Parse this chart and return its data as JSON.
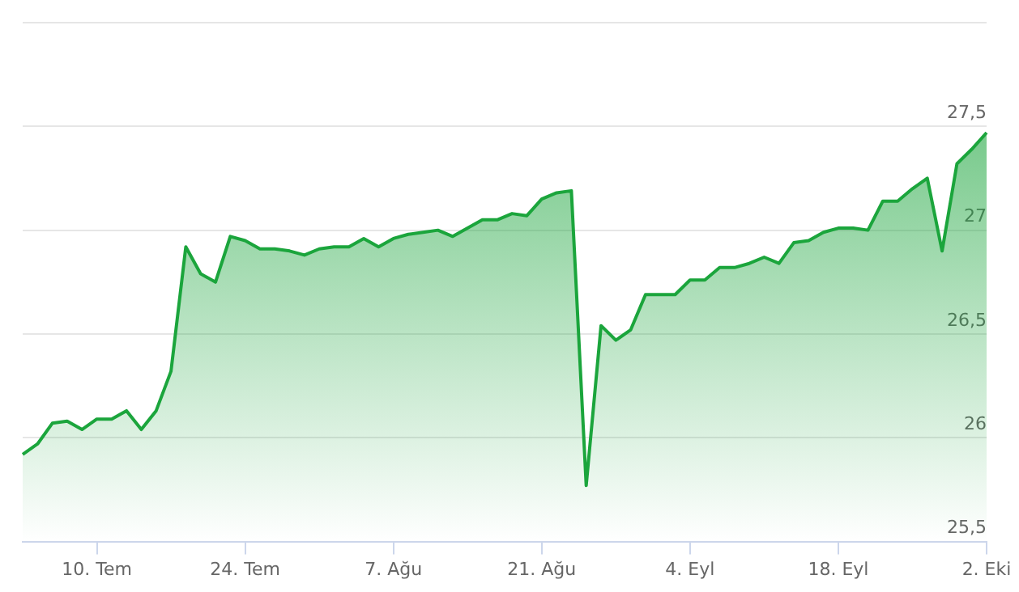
{
  "chart_data": {
    "type": "area",
    "categories": [
      null,
      null,
      null,
      null,
      null,
      "10. Tem",
      null,
      null,
      null,
      null,
      null,
      null,
      null,
      null,
      null,
      "24. Tem",
      null,
      null,
      null,
      null,
      null,
      null,
      null,
      null,
      null,
      "7. Ağu",
      null,
      null,
      null,
      null,
      null,
      null,
      null,
      null,
      null,
      "21. Ağu",
      null,
      null,
      null,
      null,
      null,
      null,
      null,
      null,
      null,
      "4. Eyl",
      null,
      null,
      null,
      null,
      null,
      null,
      null,
      null,
      null,
      "18. Eyl",
      null,
      null,
      null,
      null,
      null,
      null,
      null,
      null,
      null,
      "2. Eki"
    ],
    "values": [
      25.92,
      25.97,
      26.07,
      26.08,
      26.04,
      26.09,
      26.09,
      26.13,
      26.04,
      26.13,
      26.32,
      26.92,
      26.79,
      26.75,
      26.97,
      26.95,
      26.91,
      26.91,
      26.9,
      26.88,
      26.91,
      26.92,
      26.92,
      26.96,
      26.92,
      26.96,
      26.98,
      26.99,
      27.0,
      26.97,
      27.01,
      27.05,
      27.05,
      27.08,
      27.07,
      27.15,
      27.18,
      27.19,
      25.77,
      26.54,
      26.47,
      26.52,
      26.69,
      26.69,
      26.69,
      26.76,
      26.76,
      26.82,
      26.82,
      26.84,
      26.87,
      26.84,
      26.94,
      26.95,
      26.99,
      27.01,
      27.01,
      27.0,
      27.14,
      27.14,
      27.2,
      27.25,
      26.9,
      27.32,
      27.39,
      27.47
    ],
    "color": "#1ba53c",
    "ylim": [
      25.5,
      28
    ],
    "yticks": [
      {
        "value": 25.5,
        "label": "25,5"
      },
      26,
      {
        "value": 26.5,
        "label": "26,5"
      },
      27,
      {
        "value": 27.5,
        "label": "27,5"
      },
      {
        "value": 28,
        "label": null
      }
    ],
    "grid": "y",
    "marker": "none"
  }
}
